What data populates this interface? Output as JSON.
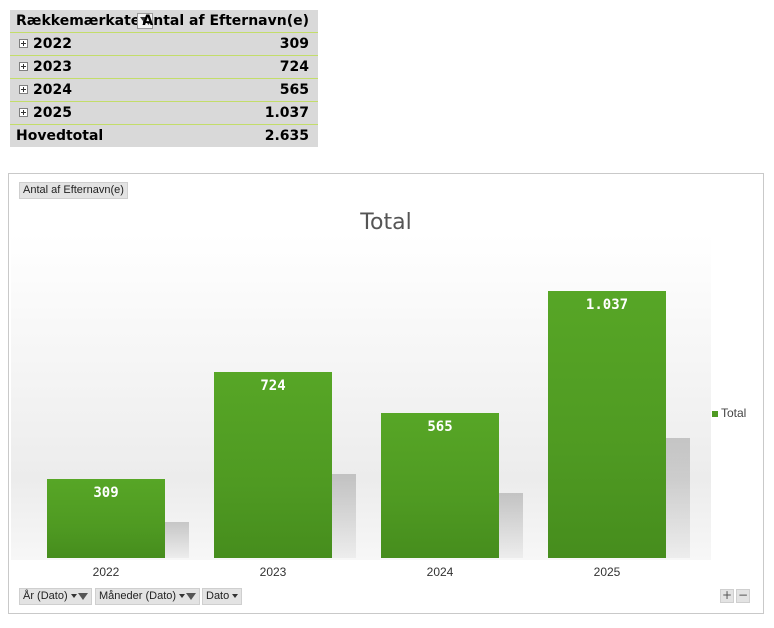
{
  "pivot": {
    "header": {
      "row_labels": "Rækkemærkater",
      "value_header": "Antal af Efternavn(e)"
    },
    "rows": [
      {
        "label": "2022",
        "value": "309"
      },
      {
        "label": "2023",
        "value": "724"
      },
      {
        "label": "2024",
        "value": "565"
      },
      {
        "label": "2025",
        "value": "1.037"
      }
    ],
    "grand_total": {
      "label": "Hovedtotal",
      "value": "2.635"
    }
  },
  "chart": {
    "value_field_button": "Antal af Efternavn(e)",
    "legend_label": "Total",
    "axis_field_buttons": [
      "År (Dato)",
      "Måneder (Dato)",
      "Dato"
    ],
    "zoom": {
      "plus": "+",
      "minus": "−"
    }
  },
  "chart_data": {
    "type": "bar",
    "title": "Total",
    "categories": [
      "2022",
      "2023",
      "2024",
      "2025"
    ],
    "series": [
      {
        "name": "Total",
        "values": [
          309,
          724,
          565,
          1037
        ]
      }
    ],
    "data_labels": [
      "309",
      "724",
      "565",
      "1.037"
    ],
    "ylim": [
      0,
      1400
    ],
    "grid": false,
    "legend": "right",
    "color": "#4f9a22"
  }
}
